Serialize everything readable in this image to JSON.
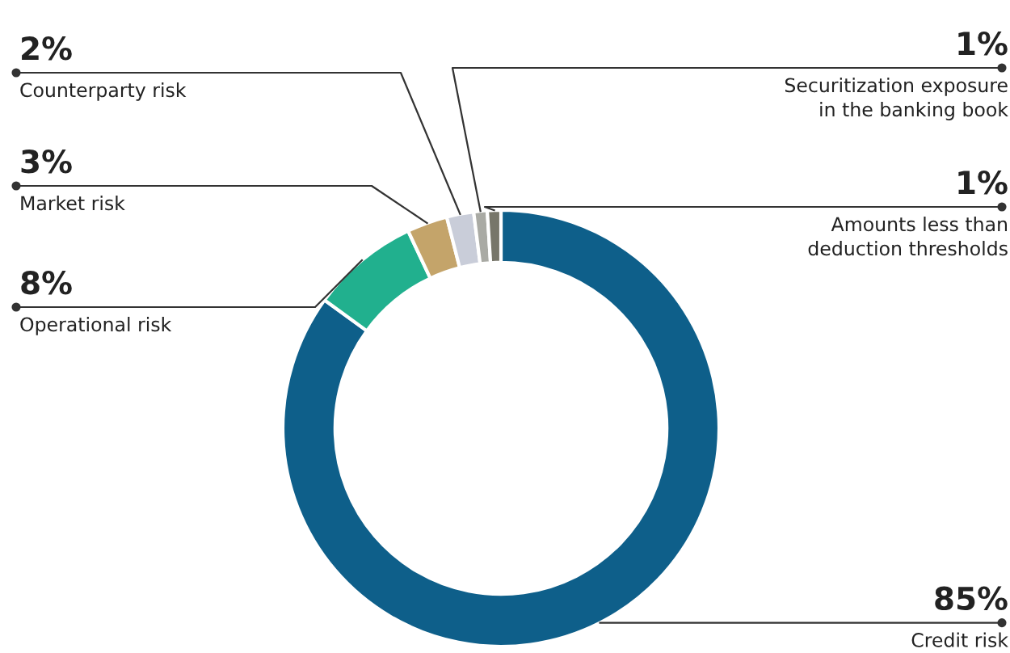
{
  "chart_data": {
    "type": "donut",
    "categories": [
      "Credit risk",
      "Operational risk",
      "Market risk",
      "Counterparty risk",
      "Securitization exposure\nin the banking book",
      "Amounts less than\ndeduction thresholds"
    ],
    "values": [
      85,
      8,
      3,
      2,
      1,
      1
    ],
    "value_labels": [
      "85%",
      "8%",
      "3%",
      "2%",
      "1%",
      "1%"
    ],
    "colors": [
      "#0e5f8a",
      "#21b08e",
      "#c4a46a",
      "#c9cdd9",
      "#a9aaa4",
      "#77766a"
    ],
    "legend": false
  }
}
